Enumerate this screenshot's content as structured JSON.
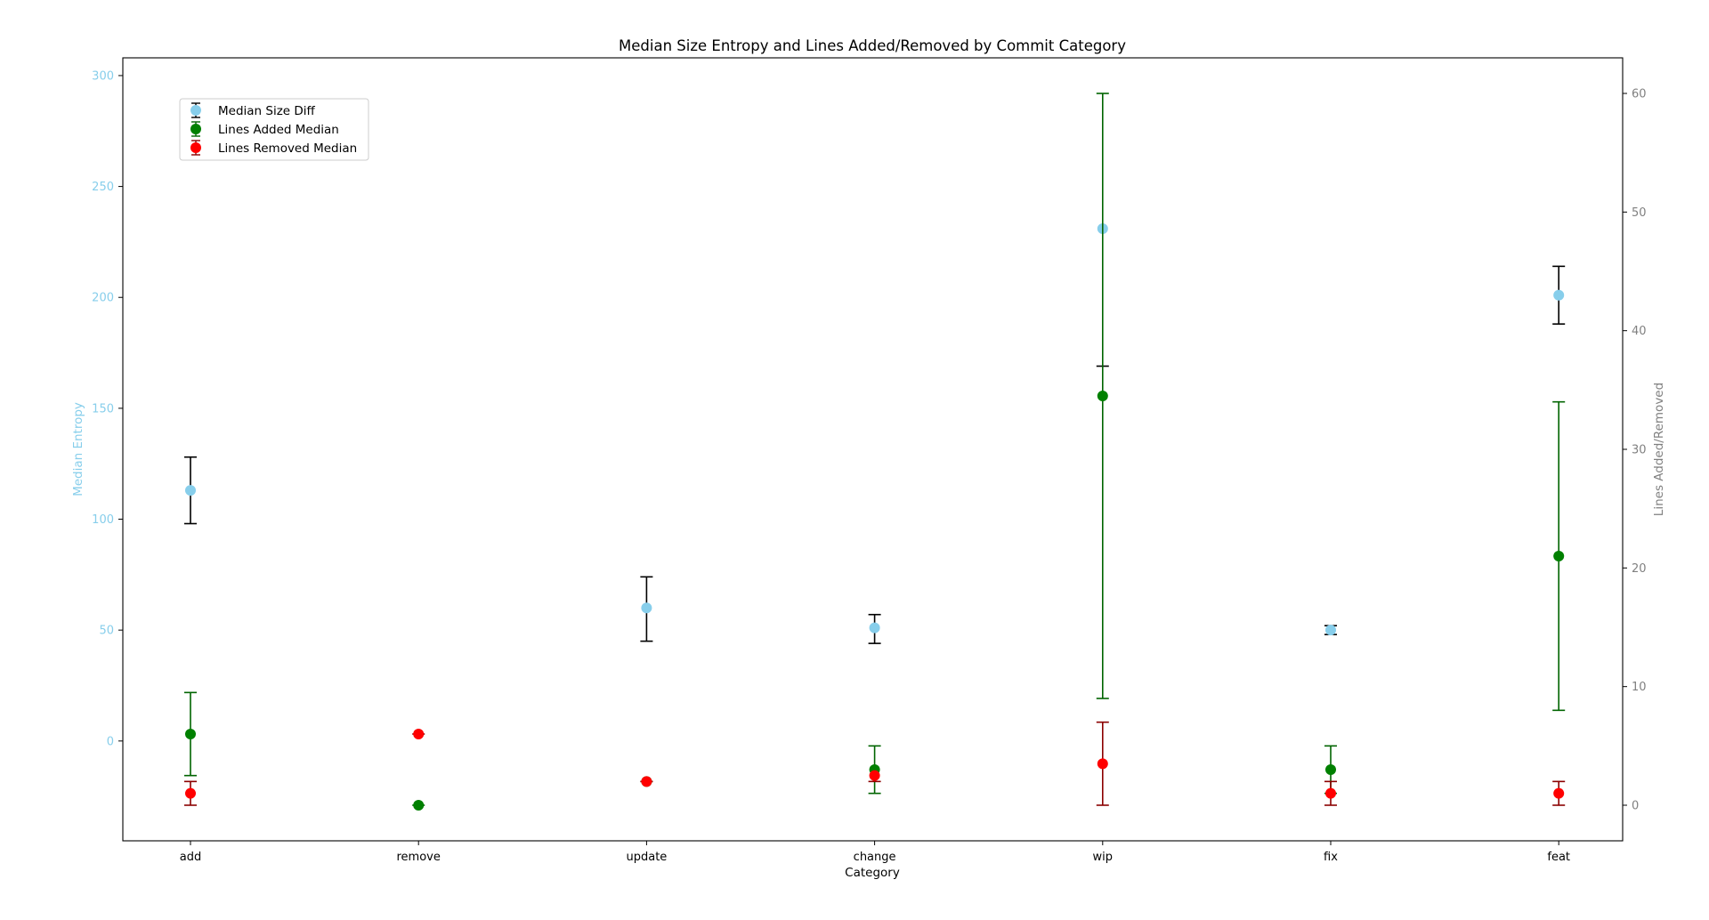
{
  "chart_data": {
    "type": "scatter",
    "title": "Median Size Entropy and Lines Added/Removed by Commit Category",
    "xlabel": "Category",
    "ylabel_left": "Median Entropy",
    "ylabel_right": "Lines Added/Removed",
    "categories": [
      "add",
      "remove",
      "update",
      "change",
      "wip",
      "fix",
      "feat"
    ],
    "ylim_left": [
      -45,
      308
    ],
    "ylim_right": [
      -3,
      63
    ],
    "yticks_left": [
      0,
      50,
      100,
      150,
      200,
      250,
      300
    ],
    "yticks_right": [
      0,
      10,
      20,
      30,
      40,
      50,
      60
    ],
    "legend_position": "upper-left",
    "grid": false,
    "colors": {
      "left_axis": "#87CEEB",
      "right_axis": "#808080",
      "size_diff": "#87CEEB",
      "size_diff_err": "#000000",
      "lines_added": "#008000",
      "lines_added_err": "#006400",
      "lines_removed": "#FF0000",
      "lines_removed_err": "#8B0000"
    },
    "series": [
      {
        "name": "Median Size Diff",
        "axis": "left",
        "values": [
          113,
          null,
          60,
          51,
          231,
          50,
          201
        ],
        "err_low": [
          98,
          null,
          45,
          44,
          169,
          48,
          188
        ],
        "err_high": [
          128,
          null,
          74,
          57,
          169,
          52,
          214
        ]
      },
      {
        "name": "Lines Added Median",
        "axis": "right",
        "values": [
          6,
          0,
          2,
          3,
          34.5,
          3,
          21
        ],
        "err_low": [
          2.5,
          0,
          2,
          1,
          9,
          1,
          8
        ],
        "err_high": [
          9.5,
          0,
          2,
          5,
          60,
          5,
          34
        ]
      },
      {
        "name": "Lines Removed Median",
        "axis": "right",
        "values": [
          1,
          6,
          2,
          2.5,
          3.5,
          1,
          1
        ],
        "err_low": [
          0,
          6,
          2,
          2,
          0,
          0,
          0
        ],
        "err_high": [
          2,
          6,
          2,
          2,
          7,
          2,
          2
        ]
      }
    ]
  }
}
